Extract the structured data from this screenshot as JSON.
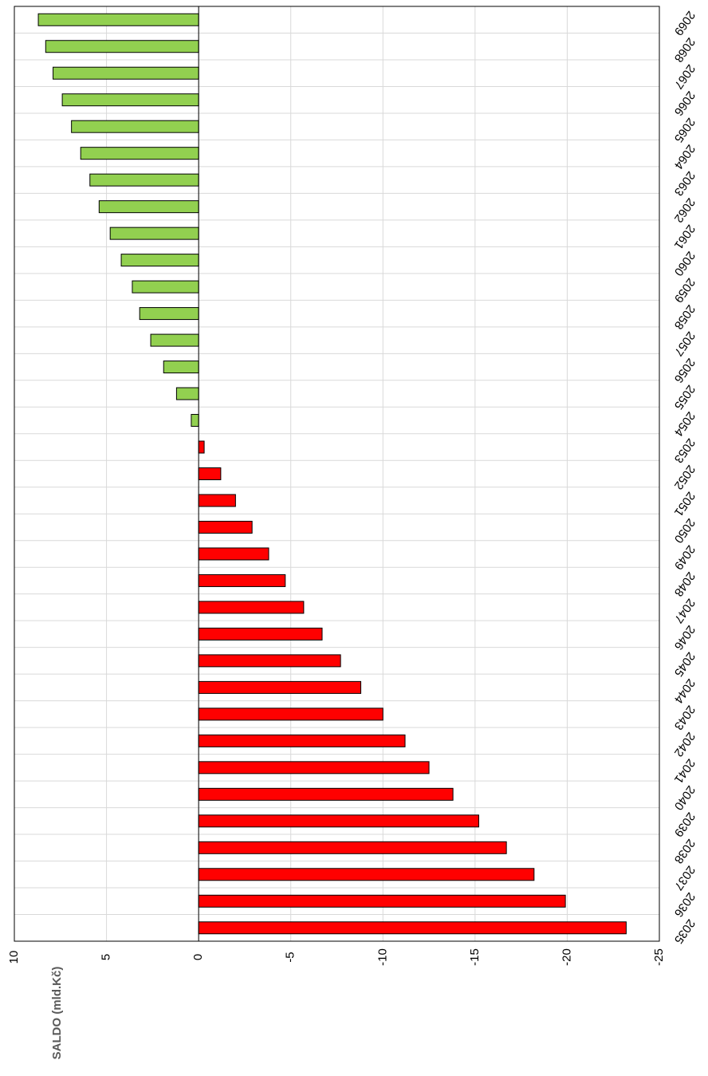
{
  "chart_data": {
    "type": "bar",
    "orientation": "horizontal",
    "x_label": "SALDO (mld.Kč)",
    "categories": [
      "2035",
      "2036",
      "2037",
      "2038",
      "2039",
      "2040",
      "2041",
      "2042",
      "2043",
      "2044",
      "2045",
      "2046",
      "2047",
      "2048",
      "2049",
      "2050",
      "2051",
      "2052",
      "2053",
      "2054",
      "2055",
      "2056",
      "2057",
      "2058",
      "2059",
      "2060",
      "2061",
      "2062",
      "2063",
      "2064",
      "2065",
      "2066",
      "2067",
      "2068",
      "2069"
    ],
    "values": [
      -23.2,
      -19.9,
      -18.2,
      -16.7,
      -15.2,
      -13.8,
      -12.5,
      -11.2,
      -10.0,
      -8.8,
      -7.7,
      -6.7,
      -5.7,
      -4.7,
      -3.8,
      -2.9,
      -2.0,
      -1.2,
      -0.3,
      0.4,
      1.2,
      1.9,
      2.6,
      3.2,
      3.6,
      4.2,
      4.8,
      5.4,
      5.9,
      6.4,
      6.9,
      7.4,
      7.9,
      8.3,
      8.7
    ],
    "positive_color": "#92d050",
    "negative_color": "#ff0000",
    "xlim": [
      10,
      -25
    ],
    "xticks": [
      10,
      5,
      0,
      -5,
      -10,
      -15,
      -20,
      -25
    ],
    "grid": true
  }
}
